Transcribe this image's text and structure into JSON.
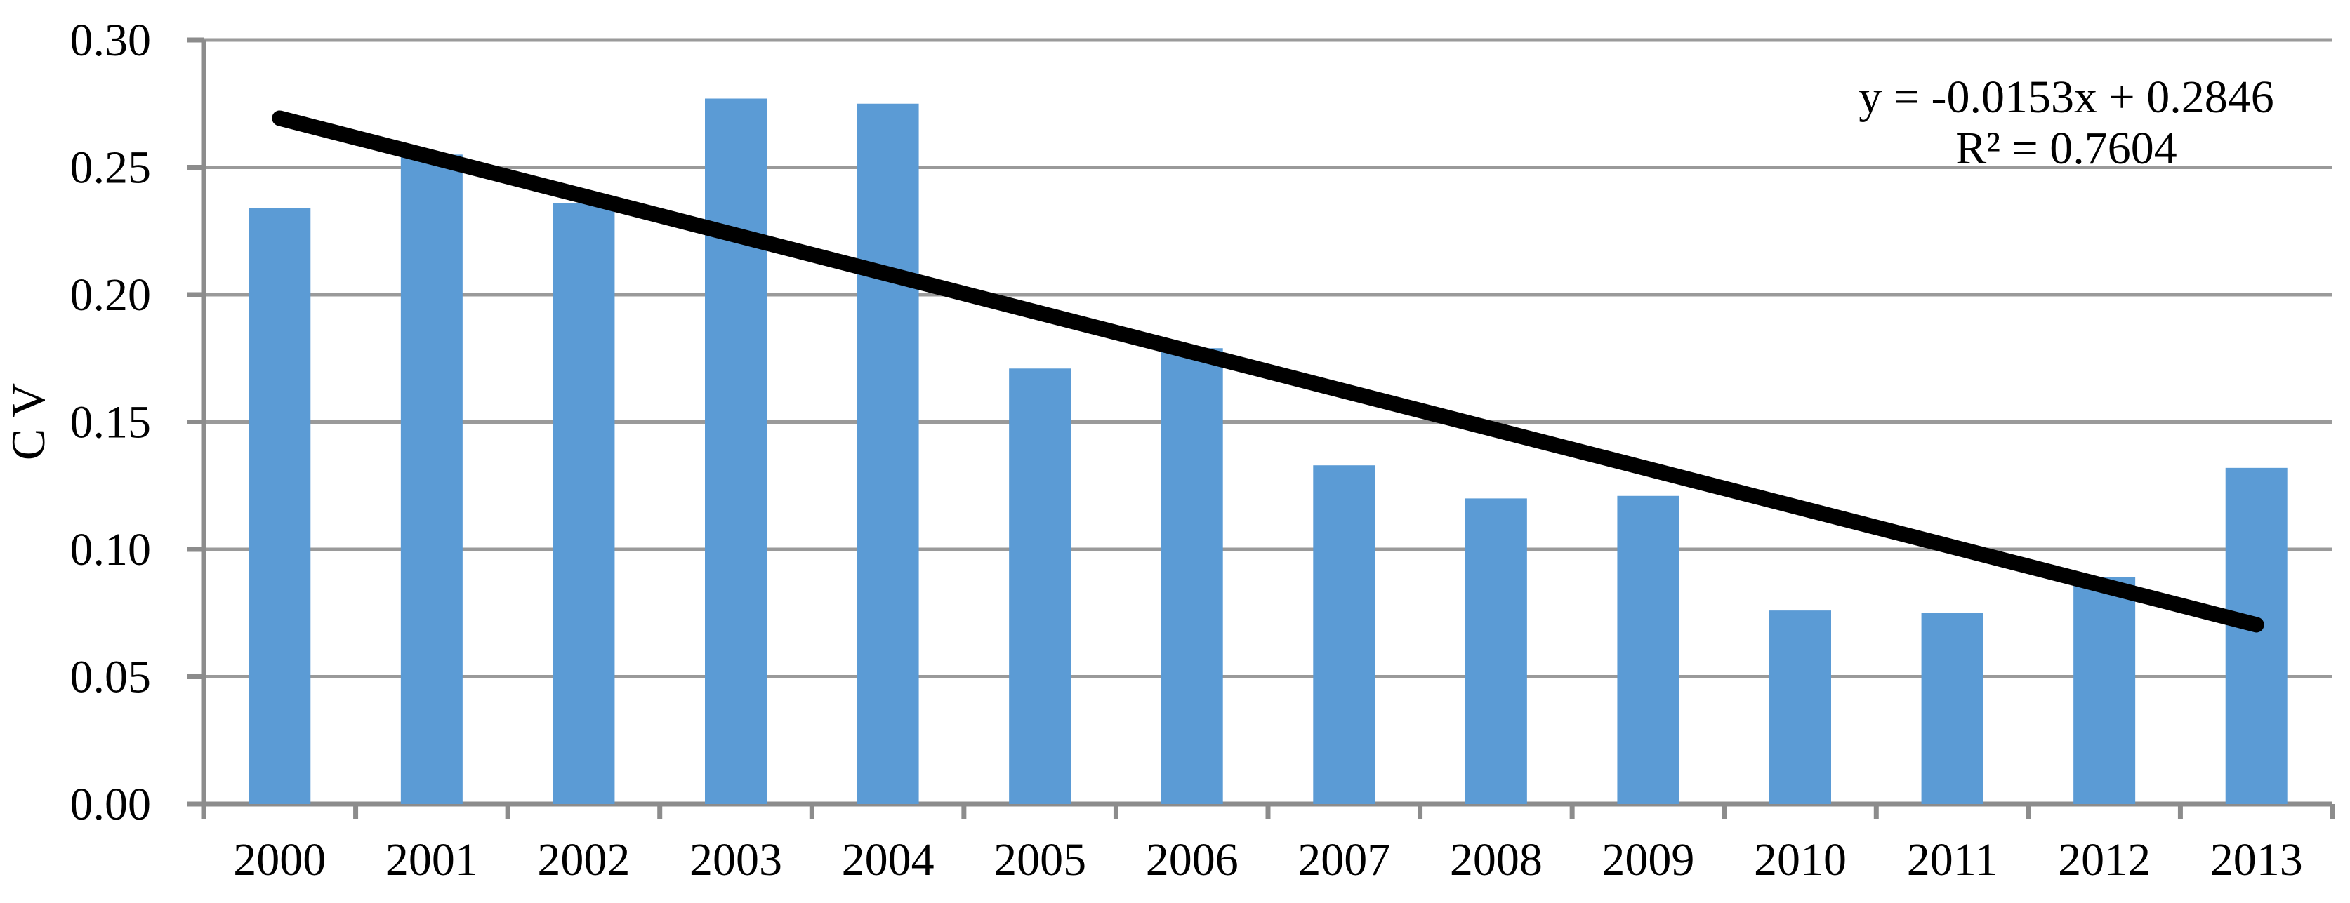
{
  "figure": {
    "y_axis_title": "C V",
    "equation_line1": "y = -0.0153x + 0.2846",
    "equation_line2": "R² = 0.7604"
  },
  "chart_data": {
    "type": "bar",
    "title": "",
    "xlabel": "",
    "ylabel": "C V",
    "categories": [
      "2000",
      "2001",
      "2002",
      "2003",
      "2004",
      "2005",
      "2006",
      "2007",
      "2008",
      "2009",
      "2010",
      "2011",
      "2012",
      "2013"
    ],
    "values": [
      0.234,
      0.255,
      0.236,
      0.277,
      0.275,
      0.171,
      0.179,
      0.133,
      0.12,
      0.121,
      0.076,
      0.075,
      0.089,
      0.132
    ],
    "series_name": "CV",
    "ylim": [
      0,
      0.3
    ],
    "ytick_step": 0.05,
    "ytick_labels": [
      "0.00",
      "0.05",
      "0.10",
      "0.15",
      "0.20",
      "0.25",
      "0.30"
    ],
    "grid": "horizontal",
    "legend_position": "none",
    "trendline": {
      "type": "linear",
      "slope": -0.0153,
      "intercept": 0.2846,
      "r_squared": 0.7604,
      "equation": "y = -0.0153x + 0.2846",
      "r2_label": "R² = 0.7604",
      "x_start": 1,
      "x_end": 14
    },
    "colors": {
      "bar_fill": "#5B9BD5",
      "trendline": "#000000",
      "gridline": "#9A9A9A",
      "axis": "#8C8C8C",
      "text": "#000000",
      "background": "#FFFFFF"
    }
  }
}
